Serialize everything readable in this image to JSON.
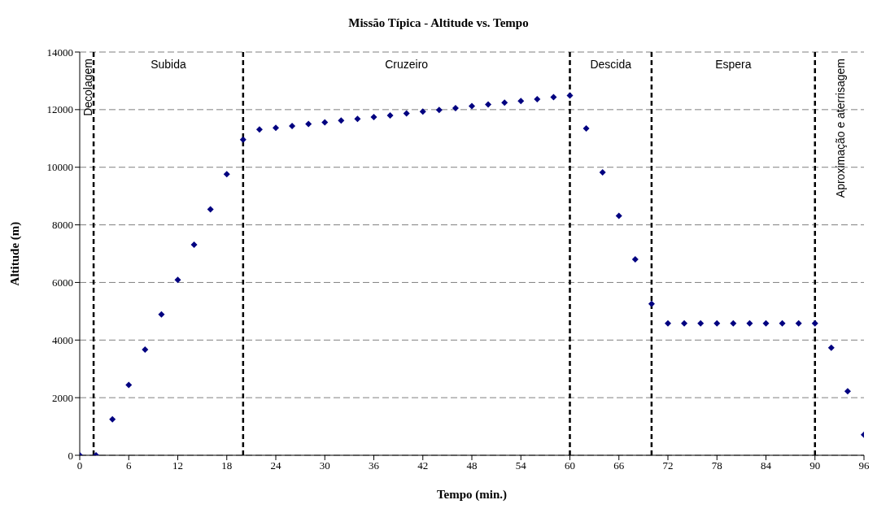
{
  "chart_data": {
    "type": "scatter",
    "title": "Missão Típica - Altitude vs. Tempo",
    "xlabel": "Tempo (min.)",
    "ylabel": "Altitude (m)",
    "x": [
      0,
      2,
      4,
      6,
      8,
      10,
      12,
      14,
      16,
      18,
      20,
      22,
      24,
      26,
      28,
      30,
      32,
      34,
      36,
      38,
      40,
      42,
      44,
      46,
      48,
      50,
      52,
      54,
      56,
      58,
      60,
      62,
      64,
      66,
      68,
      70,
      72,
      74,
      76,
      78,
      80,
      82,
      84,
      86,
      88,
      90,
      92,
      94,
      96
    ],
    "series": [
      {
        "color": "#000080",
        "values": [
          0,
          0,
          1250,
          2440,
          3670,
          4890,
          6090,
          7310,
          8540,
          9760,
          10960,
          11310,
          11370,
          11430,
          11500,
          11560,
          11620,
          11680,
          11740,
          11800,
          11870,
          11930,
          11990,
          12050,
          12120,
          12180,
          12240,
          12300,
          12360,
          12430,
          12490,
          11350,
          9820,
          8310,
          6800,
          5260,
          4580,
          4580,
          4580,
          4580,
          4580,
          4580,
          4580,
          4580,
          4580,
          4580,
          3730,
          2220,
          710
        ]
      }
    ],
    "xlim": [
      0,
      96
    ],
    "xticks": [
      0,
      6,
      12,
      18,
      24,
      30,
      36,
      42,
      48,
      54,
      60,
      66,
      72,
      78,
      84,
      90,
      96
    ],
    "ylim": [
      0,
      14000
    ],
    "yticks": [
      0,
      2000,
      4000,
      6000,
      8000,
      10000,
      12000,
      14000
    ],
    "grid": "y",
    "marker": "diamond",
    "legend": false,
    "ref_lines": [
      {
        "axis": "x",
        "value": 1.7,
        "color": "#000000",
        "line_style": "dashed"
      },
      {
        "axis": "x",
        "value": 20,
        "color": "#000000",
        "line_style": "dashed"
      },
      {
        "axis": "x",
        "value": 60,
        "color": "#000000",
        "line_style": "dashed"
      },
      {
        "axis": "x",
        "value": 70,
        "color": "#000000",
        "line_style": "dashed"
      },
      {
        "axis": "x",
        "value": 90,
        "color": "#000000",
        "line_style": "dashed"
      }
    ],
    "annotations": [
      "Decolagem",
      "Subida",
      "Cruzeiro",
      "Descida",
      "Espera",
      "Aproximação e aterrisagem"
    ]
  }
}
